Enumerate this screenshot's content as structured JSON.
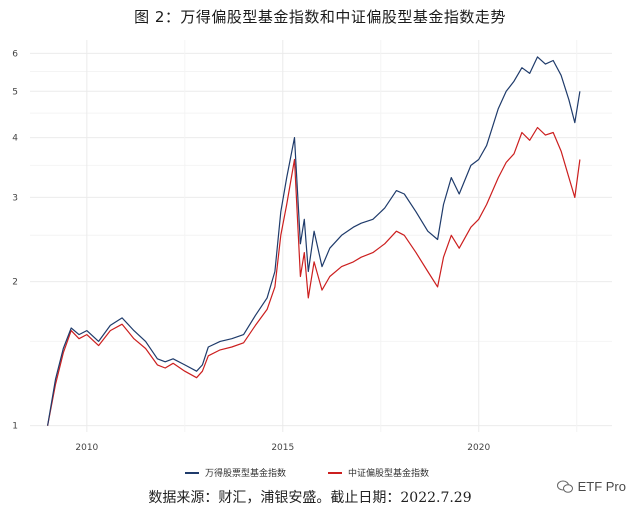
{
  "title": "图 2：万得偏股型基金指数和中证偏股型基金指数走势",
  "source": "数据来源：财汇，浦银安盛。截止日期：2022.7.29",
  "watermark": "ETF Pro",
  "chart_data": {
    "type": "line",
    "title": "图 2：万得偏股型基金指数和中证偏股型基金指数走势",
    "xlabel": "",
    "ylabel": "",
    "y_scale": "log",
    "ylim": [
      0.97,
      6.4
    ],
    "xlim": [
      2008.55,
      2023.4
    ],
    "x_ticks": [
      2010,
      2015,
      2020
    ],
    "y_ticks": [
      1,
      2,
      3,
      4,
      5,
      6
    ],
    "grid": true,
    "legend_position": "bottom",
    "colors": {
      "wind": "#1f3b6b",
      "csi": "#cc1f1f"
    },
    "series": [
      {
        "name": "万得股票型基金指数",
        "x": [
          2009.0,
          2009.2,
          2009.4,
          2009.6,
          2009.8,
          2010.0,
          2010.3,
          2010.6,
          2010.9,
          2011.2,
          2011.5,
          2011.8,
          2012.0,
          2012.2,
          2012.5,
          2012.8,
          2012.95,
          2013.1,
          2013.4,
          2013.7,
          2014.0,
          2014.3,
          2014.6,
          2014.8,
          2014.95,
          2015.1,
          2015.3,
          2015.45,
          2015.55,
          2015.65,
          2015.8,
          2016.0,
          2016.2,
          2016.5,
          2016.8,
          2017.0,
          2017.3,
          2017.6,
          2017.9,
          2018.1,
          2018.4,
          2018.7,
          2018.95,
          2019.1,
          2019.3,
          2019.5,
          2019.8,
          2020.0,
          2020.2,
          2020.5,
          2020.7,
          2020.9,
          2021.1,
          2021.3,
          2021.5,
          2021.7,
          2021.9,
          2022.1,
          2022.3,
          2022.45,
          2022.58
        ],
        "y": [
          1.0,
          1.25,
          1.45,
          1.6,
          1.55,
          1.58,
          1.5,
          1.62,
          1.68,
          1.58,
          1.5,
          1.38,
          1.36,
          1.38,
          1.34,
          1.3,
          1.34,
          1.46,
          1.5,
          1.52,
          1.55,
          1.7,
          1.85,
          2.1,
          2.8,
          3.3,
          4.0,
          2.4,
          2.7,
          2.1,
          2.55,
          2.15,
          2.35,
          2.5,
          2.6,
          2.65,
          2.7,
          2.85,
          3.1,
          3.05,
          2.8,
          2.55,
          2.45,
          2.9,
          3.3,
          3.05,
          3.5,
          3.6,
          3.85,
          4.6,
          5.0,
          5.25,
          5.6,
          5.45,
          5.9,
          5.7,
          5.8,
          5.4,
          4.8,
          4.3,
          5.0
        ]
      },
      {
        "name": "中证偏股型基金指数",
        "x": [
          2009.0,
          2009.2,
          2009.4,
          2009.6,
          2009.8,
          2010.0,
          2010.3,
          2010.6,
          2010.9,
          2011.2,
          2011.5,
          2011.8,
          2012.0,
          2012.2,
          2012.5,
          2012.8,
          2012.95,
          2013.1,
          2013.4,
          2013.7,
          2014.0,
          2014.3,
          2014.6,
          2014.8,
          2014.95,
          2015.1,
          2015.3,
          2015.45,
          2015.55,
          2015.65,
          2015.8,
          2016.0,
          2016.2,
          2016.5,
          2016.8,
          2017.0,
          2017.3,
          2017.6,
          2017.9,
          2018.1,
          2018.4,
          2018.7,
          2018.95,
          2019.1,
          2019.3,
          2019.5,
          2019.8,
          2020.0,
          2020.2,
          2020.5,
          2020.7,
          2020.9,
          2021.1,
          2021.3,
          2021.5,
          2021.7,
          2021.9,
          2022.1,
          2022.3,
          2022.45,
          2022.58
        ],
        "y": [
          1.0,
          1.22,
          1.42,
          1.58,
          1.52,
          1.55,
          1.47,
          1.58,
          1.63,
          1.52,
          1.45,
          1.34,
          1.32,
          1.35,
          1.3,
          1.26,
          1.3,
          1.4,
          1.44,
          1.46,
          1.49,
          1.62,
          1.75,
          1.95,
          2.5,
          2.9,
          3.6,
          2.05,
          2.3,
          1.85,
          2.2,
          1.92,
          2.05,
          2.15,
          2.2,
          2.25,
          2.3,
          2.4,
          2.55,
          2.5,
          2.3,
          2.1,
          1.95,
          2.25,
          2.5,
          2.35,
          2.6,
          2.7,
          2.9,
          3.3,
          3.55,
          3.7,
          4.1,
          3.95,
          4.2,
          4.05,
          4.1,
          3.75,
          3.3,
          3.0,
          3.6
        ]
      }
    ]
  }
}
